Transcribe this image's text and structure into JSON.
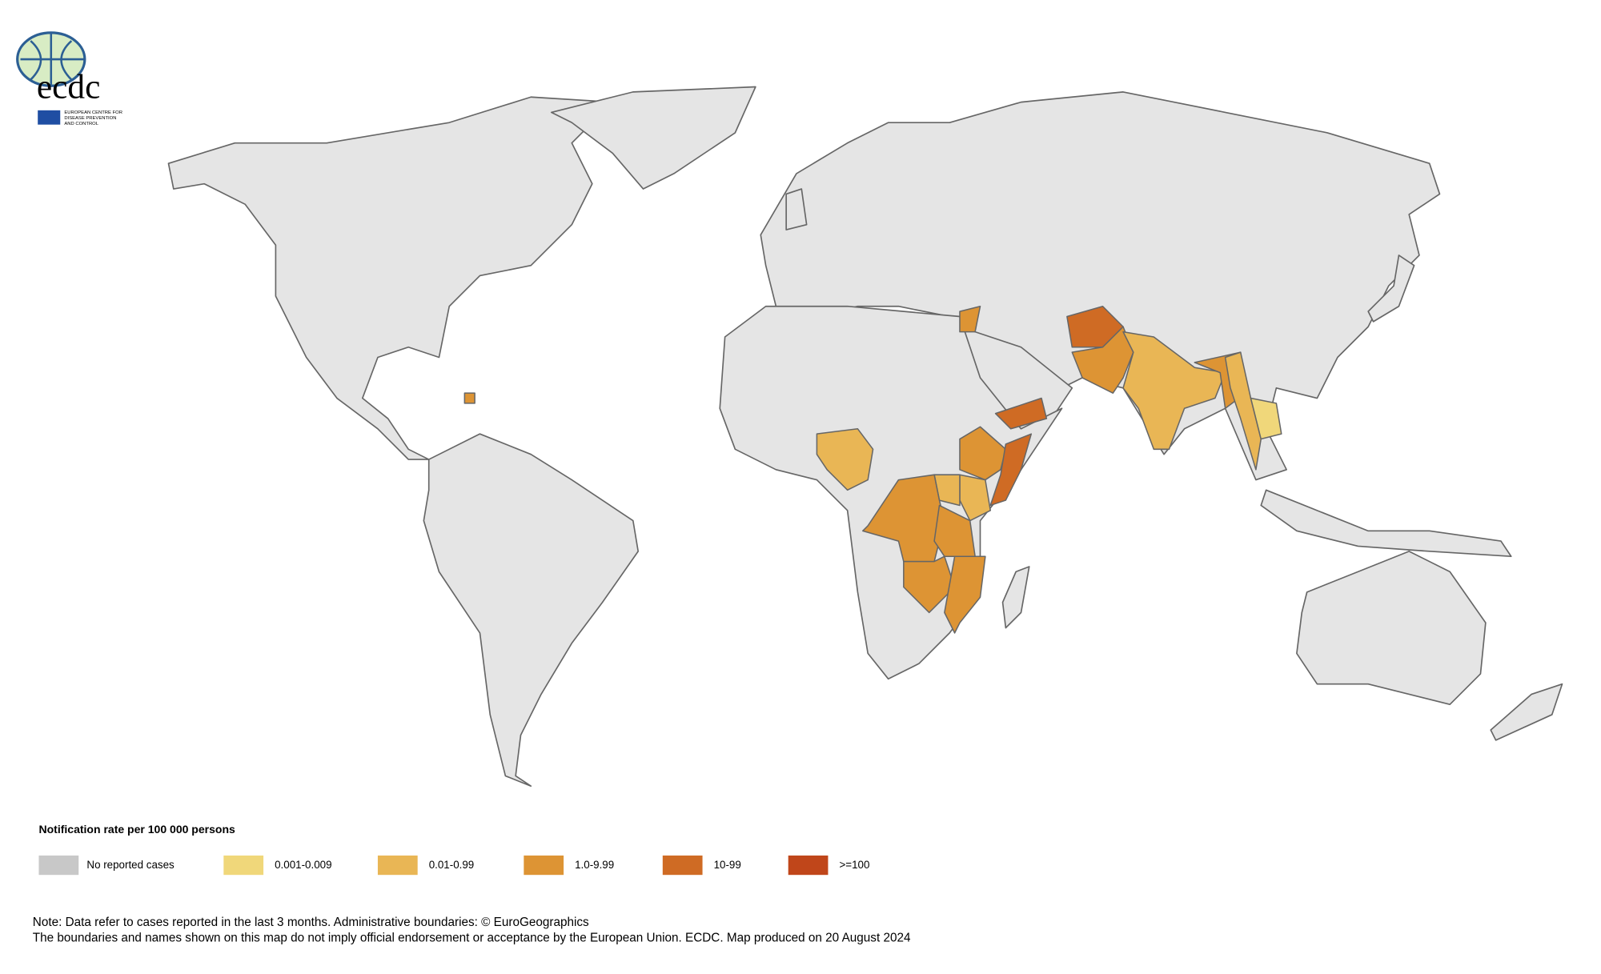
{
  "logo": {
    "name": "ecdc",
    "subtitle_lines": [
      "EUROPEAN CENTRE FOR",
      "DISEASE PREVENTION",
      "AND CONTROL"
    ]
  },
  "legend": {
    "title": "Notification rate per 100 000 persons",
    "items": [
      {
        "label": "No reported cases",
        "color": "#c8c8c8"
      },
      {
        "label": "0.001-0.009",
        "color": "#f0d77a"
      },
      {
        "label": "0.01-0.99",
        "color": "#e9b655"
      },
      {
        "label": "1.0-9.99",
        "color": "#dd9434"
      },
      {
        "label": "10-99",
        "color": "#cf6b24"
      },
      {
        "label": ">=100",
        "color": "#c0461a"
      }
    ]
  },
  "notes": [
    "Note: Data refer to cases reported in the last 3 months. Administrative boundaries: © EuroGeographics",
    "The boundaries and names shown on this map do not imply official endorsement or acceptance by the European Union. ECDC. Map produced on 20 August 2024"
  ]
}
